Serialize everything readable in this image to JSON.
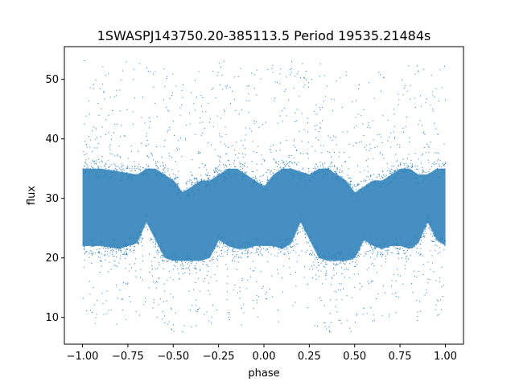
{
  "chart_data": {
    "type": "scatter",
    "title": "1SWASPJ143750.20-385113.5 Period 19535.21484s",
    "xlabel": "phase",
    "ylabel": "flux",
    "xlim": [
      -1.1,
      1.1
    ],
    "ylim": [
      5.5,
      55.5
    ],
    "xticks": [
      -1.0,
      -0.75,
      -0.5,
      -0.25,
      0.0,
      0.25,
      0.5,
      0.75,
      1.0
    ],
    "xtick_labels": [
      "−1.00",
      "−0.75",
      "−0.50",
      "−0.25",
      "0.00",
      "0.25",
      "0.50",
      "0.75",
      "1.00"
    ],
    "yticks": [
      10,
      20,
      30,
      40,
      50
    ],
    "ytick_labels": [
      "10",
      "20",
      "30",
      "40",
      "50"
    ],
    "grid": false,
    "marker_color": "#1f77b4",
    "series": [
      {
        "description_points": "phase-folded light curve, band centre flux vs phase",
        "x": [
          -1.0,
          -0.9,
          -0.8,
          -0.7,
          -0.65,
          -0.6,
          -0.55,
          -0.5,
          -0.45,
          -0.4,
          -0.35,
          -0.3,
          -0.25,
          -0.2,
          -0.15,
          -0.1,
          -0.05,
          0.0,
          0.05,
          0.1,
          0.15,
          0.2,
          0.25,
          0.3,
          0.35,
          0.4,
          0.45,
          0.5,
          0.55,
          0.6,
          0.65,
          0.7,
          0.75,
          0.8,
          0.85,
          0.9,
          0.95,
          1.0
        ],
        "upper": [
          35,
          35,
          34.5,
          34,
          35,
          35,
          34,
          33,
          31,
          32,
          33,
          33,
          34,
          35,
          35,
          34,
          33,
          32,
          34,
          35,
          35,
          34.5,
          34,
          35,
          35,
          34,
          33,
          31,
          32,
          33,
          33,
          34,
          35,
          35,
          34,
          34,
          35,
          35
        ],
        "lower": [
          22,
          22,
          21.5,
          22.5,
          26,
          23,
          20,
          19.5,
          19.5,
          19.5,
          19.5,
          20,
          23,
          22,
          21.5,
          21.5,
          22,
          22,
          22,
          21.5,
          22.5,
          26,
          23,
          20,
          19.5,
          19.5,
          19.5,
          20,
          23,
          22,
          21.5,
          22,
          22,
          21.5,
          22.5,
          26,
          23,
          22
        ]
      }
    ]
  }
}
